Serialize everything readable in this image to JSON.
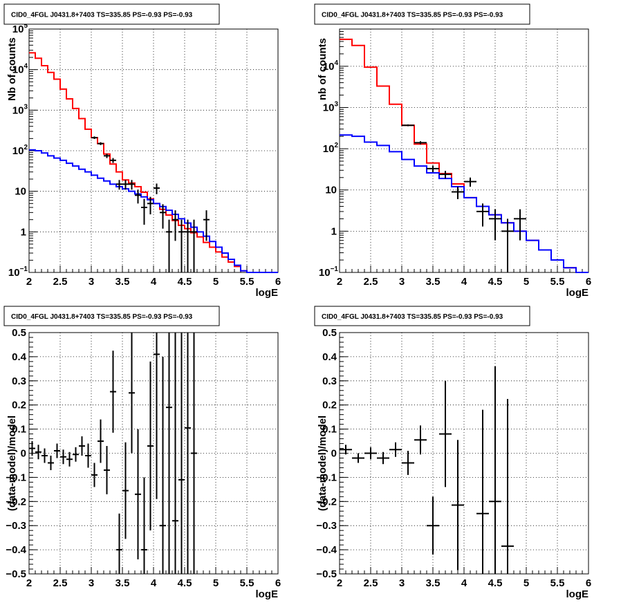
{
  "chart_data": [
    {
      "type": "line",
      "title": "CID0_4FGL J0431.8+7403 TS=335.85 PS=-0.93 PS=-0.93",
      "xlabel": "logE",
      "ylabel": "Nb of counts",
      "xlim": [
        2,
        6
      ],
      "ylim": [
        0.1,
        100000
      ],
      "yscale": "log",
      "grid": true,
      "xticks": [
        "2",
        "2.5",
        "3",
        "3.5",
        "4",
        "4.5",
        "5",
        "5.5",
        "6"
      ],
      "yticks": [
        {
          "value": 0.1,
          "base": "10",
          "exp": "−1"
        },
        {
          "value": 1,
          "base": "1",
          "exp": ""
        },
        {
          "value": 10,
          "base": "10",
          "exp": ""
        },
        {
          "value": 100,
          "base": "10",
          "exp": "2"
        },
        {
          "value": 1000,
          "base": "10",
          "exp": "3"
        },
        {
          "value": 10000,
          "base": "10",
          "exp": "4"
        },
        {
          "value": 100000,
          "base": "10",
          "exp": "5"
        }
      ],
      "bin_width": 0.1,
      "series": [
        {
          "color": "#ff0000",
          "style": "step",
          "x": [
            2.0,
            2.1,
            2.2,
            2.3,
            2.4,
            2.5,
            2.6,
            2.7,
            2.8,
            2.9,
            3.0,
            3.1,
            3.2,
            3.3,
            3.4,
            3.5,
            3.6,
            3.7,
            3.8,
            3.9,
            4.0,
            4.1,
            4.2,
            4.3,
            4.4,
            4.5,
            4.6,
            4.7,
            4.8,
            4.9,
            5.0,
            5.1,
            5.2,
            5.3,
            5.4,
            5.5,
            5.6,
            5.7,
            5.8,
            5.9
          ],
          "values": [
            26000,
            19000,
            12500,
            8500,
            5800,
            3300,
            1900,
            1100,
            620,
            340,
            210,
            150,
            83,
            47,
            30,
            19,
            16,
            13,
            9.5,
            6.5,
            5.0,
            3.6,
            2.6,
            1.9,
            1.45,
            1.2,
            0.95,
            0.75,
            0.55,
            0.42,
            0.32,
            0.24,
            0.18,
            0.14,
            0.11,
            0.1,
            0.1,
            0.1,
            0.1,
            0.1
          ]
        },
        {
          "color": "#0000ff",
          "style": "step",
          "x": [
            2.0,
            2.1,
            2.2,
            2.3,
            2.4,
            2.5,
            2.6,
            2.7,
            2.8,
            2.9,
            3.0,
            3.1,
            3.2,
            3.3,
            3.4,
            3.5,
            3.6,
            3.7,
            3.8,
            3.9,
            4.0,
            4.1,
            4.2,
            4.3,
            4.4,
            4.5,
            4.6,
            4.7,
            4.8,
            4.9,
            5.0,
            5.1,
            5.2,
            5.3,
            5.4,
            5.5,
            5.6,
            5.7,
            5.8,
            5.9
          ],
          "values": [
            105,
            100,
            88,
            75,
            66,
            58,
            49,
            42,
            35,
            30,
            25,
            21,
            18,
            15,
            13,
            11.5,
            10,
            8.6,
            7.3,
            6.2,
            5.0,
            4.2,
            3.4,
            2.7,
            2.1,
            1.65,
            1.3,
            1.0,
            0.78,
            0.58,
            0.42,
            0.3,
            0.21,
            0.15,
            0.11,
            0.1,
            0.1,
            0.1,
            0.1,
            0.1
          ]
        }
      ],
      "points": {
        "color": "#000000",
        "x": [
          3.05,
          3.15,
          3.25,
          3.35,
          3.45,
          3.55,
          3.65,
          3.75,
          3.85,
          3.95,
          4.05,
          4.15,
          4.25,
          4.35,
          4.45,
          4.55,
          4.65,
          4.85
        ],
        "y": [
          210,
          150,
          75,
          58,
          15,
          15,
          15,
          8,
          4,
          5,
          12,
          3,
          1,
          2,
          1,
          1,
          1,
          2
        ],
        "yerr": [
          15,
          12,
          9,
          8,
          4,
          4,
          4,
          3,
          2.5,
          2.3,
          3.5,
          1.8,
          1,
          1.4,
          1,
          1,
          1,
          1.4
        ]
      }
    },
    {
      "type": "line",
      "title": "CID0_4FGL J0431.8+7403 TS=335.85 PS=-0.93 PS=-0.93",
      "xlabel": "logE",
      "ylabel": "nb of counts",
      "xlim": [
        2,
        6
      ],
      "ylim": [
        0.1,
        80000
      ],
      "yscale": "log",
      "grid": true,
      "xticks": [
        "2",
        "2.5",
        "3",
        "3.5",
        "4",
        "4.5",
        "5",
        "5.5",
        "6"
      ],
      "yticks": [
        {
          "value": 0.1,
          "base": "10",
          "exp": "−1"
        },
        {
          "value": 1,
          "base": "1",
          "exp": ""
        },
        {
          "value": 10,
          "base": "10",
          "exp": ""
        },
        {
          "value": 100,
          "base": "10",
          "exp": "2"
        },
        {
          "value": 1000,
          "base": "10",
          "exp": "3"
        },
        {
          "value": 10000,
          "base": "10",
          "exp": "4"
        }
      ],
      "bin_width": 0.2,
      "series": [
        {
          "color": "#ff0000",
          "style": "step",
          "x": [
            2.0,
            2.2,
            2.4,
            2.6,
            2.8,
            3.0,
            3.2,
            3.4,
            3.6,
            3.8,
            4.0,
            4.2,
            4.4,
            4.6,
            4.8,
            5.0,
            5.2,
            5.4,
            5.6,
            5.8
          ],
          "values": [
            45000,
            32000,
            9500,
            3300,
            1200,
            370,
            130,
            45,
            25,
            14,
            6.5,
            4.0,
            2.5,
            1.6,
            1.0,
            0.6,
            0.35,
            0.2,
            0.13,
            0.1
          ]
        },
        {
          "color": "#0000ff",
          "style": "step",
          "x": [
            2.0,
            2.2,
            2.4,
            2.6,
            2.8,
            3.0,
            3.2,
            3.4,
            3.6,
            3.8,
            4.0,
            4.2,
            4.4,
            4.6,
            4.8,
            5.0,
            5.2,
            5.4,
            5.6,
            5.8
          ],
          "values": [
            215,
            200,
            145,
            120,
            85,
            55,
            38,
            26,
            19,
            12,
            6.5,
            4.0,
            2.5,
            1.6,
            1.0,
            0.6,
            0.35,
            0.2,
            0.13,
            0.1
          ]
        }
      ],
      "points": {
        "color": "#000000",
        "x": [
          3.1,
          3.3,
          3.5,
          3.7,
          3.9,
          4.1,
          4.3,
          4.5,
          4.7,
          4.9
        ],
        "y": [
          370,
          140,
          33,
          24,
          9,
          16,
          3,
          2,
          1,
          2
        ],
        "yerr": [
          19,
          12,
          6,
          5,
          3,
          4,
          1.7,
          1.4,
          1,
          1.4
        ]
      }
    },
    {
      "type": "scatter",
      "title": "CID0_4FGL J0431.8+7403 TS=335.85 PS=-0.93 PS=-0.93",
      "xlabel": "logE",
      "ylabel": "(data-model)/model",
      "xlim": [
        2,
        6
      ],
      "ylim": [
        -0.5,
        0.5
      ],
      "grid": true,
      "xticks": [
        "2",
        "2.5",
        "3",
        "3.5",
        "4",
        "4.5",
        "5",
        "5.5",
        "6"
      ],
      "yticks": [
        "−0.5",
        "−0.4",
        "−0.3",
        "−0.2",
        "−0.1",
        "0",
        "0.1",
        "0.2",
        "0.3",
        "0.4",
        "0.5"
      ],
      "bin_width": 0.1,
      "points": {
        "color": "#000000",
        "x": [
          2.05,
          2.15,
          2.25,
          2.35,
          2.45,
          2.55,
          2.65,
          2.75,
          2.85,
          2.95,
          3.05,
          3.15,
          3.25,
          3.35,
          3.45,
          3.55,
          3.65,
          3.75,
          3.85,
          3.95,
          4.05,
          4.15,
          4.25,
          4.35,
          4.45,
          4.55,
          4.65
        ],
        "y": [
          0.02,
          0.005,
          -0.01,
          -0.04,
          0.01,
          -0.015,
          -0.025,
          -0.005,
          0.03,
          -0.01,
          -0.09,
          0.05,
          -0.07,
          0.255,
          -0.4,
          -0.155,
          0.25,
          -0.17,
          -0.4,
          0.03,
          0.41,
          -0.3,
          0.19,
          -0.28,
          -0.11,
          0.105,
          0.0
        ],
        "yerr": [
          0.03,
          0.03,
          0.03,
          0.03,
          0.03,
          0.03,
          0.03,
          0.03,
          0.04,
          0.05,
          0.05,
          0.09,
          0.1,
          0.17,
          0.15,
          0.2,
          0.25,
          0.27,
          0.3,
          0.35,
          0.6,
          0.7,
          0.8,
          0.8,
          0.8,
          0.8,
          0.8
        ]
      }
    },
    {
      "type": "scatter",
      "title": "CID0_4FGL J0431.8+7403 TS=335.85 PS=-0.93 PS=-0.93",
      "xlabel": "logE",
      "ylabel": "(data-model)/model",
      "xlim": [
        2,
        6
      ],
      "ylim": [
        -0.5,
        0.5
      ],
      "grid": true,
      "xticks": [
        "2",
        "2.5",
        "3",
        "3.5",
        "4",
        "4.5",
        "5",
        "5.5",
        "6"
      ],
      "yticks": [
        "−0.5",
        "−0.4",
        "−0.3",
        "−0.2",
        "−0.1",
        "0",
        "0.1",
        "0.2",
        "0.3",
        "0.4",
        "0.5"
      ],
      "bin_width": 0.2,
      "points": {
        "color": "#000000",
        "x": [
          2.1,
          2.3,
          2.5,
          2.7,
          2.9,
          3.1,
          3.3,
          3.5,
          3.7,
          3.9,
          4.3,
          4.5,
          4.7
        ],
        "y": [
          0.015,
          -0.02,
          0.0,
          -0.02,
          0.015,
          -0.04,
          0.055,
          -0.3,
          0.08,
          -0.215,
          -0.25,
          -0.2,
          -0.385
        ],
        "yerr": [
          0.02,
          0.02,
          0.025,
          0.025,
          0.03,
          0.05,
          0.06,
          0.12,
          0.22,
          0.27,
          0.43,
          0.56,
          0.61
        ]
      }
    }
  ]
}
